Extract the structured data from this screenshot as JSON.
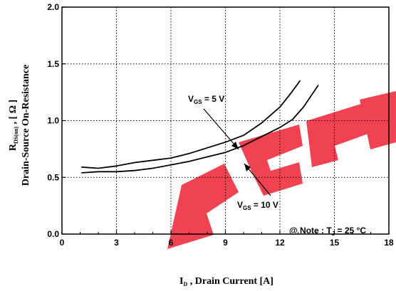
{
  "chart_data": {
    "type": "line",
    "title": "",
    "xlabel": {
      "main": "I",
      "sub": "D",
      "rest": " , Drain Current  [A]"
    },
    "ylabel": {
      "main": "R",
      "sub": "DS(on)",
      "rest": "  , [ Ω ]",
      "line2": "Drain-Source On-Resistance"
    },
    "xlim": [
      0,
      18
    ],
    "ylim": [
      0.0,
      2.0
    ],
    "xticks": [
      "0",
      "3",
      "6",
      "9",
      "12",
      "15",
      "18"
    ],
    "yticks": [
      "0.0",
      "0.5",
      "1.0",
      "1.5",
      "2.0"
    ],
    "grid": true,
    "series": [
      {
        "name": "VGS = 5 V",
        "color": "#000000",
        "x": [
          1.1,
          2.0,
          3.0,
          4.0,
          5.0,
          6.0,
          7.0,
          8.0,
          9.0,
          10.0,
          11.0,
          12.0,
          12.6,
          13.1
        ],
        "y": [
          0.59,
          0.58,
          0.6,
          0.63,
          0.65,
          0.67,
          0.71,
          0.76,
          0.81,
          0.87,
          0.98,
          1.12,
          1.24,
          1.35
        ]
      },
      {
        "name": "VGS = 10 V",
        "color": "#000000",
        "x": [
          1.1,
          2.0,
          3.0,
          4.0,
          5.0,
          6.0,
          7.0,
          8.0,
          9.0,
          10.0,
          11.0,
          12.0,
          12.7,
          13.3,
          14.1
        ],
        "y": [
          0.54,
          0.55,
          0.55,
          0.56,
          0.58,
          0.61,
          0.64,
          0.68,
          0.72,
          0.78,
          0.86,
          0.94,
          1.01,
          1.12,
          1.31
        ]
      }
    ],
    "annotations": {
      "vgs5": {
        "main": "V",
        "sub": "GS",
        "rest": " = 5 V"
      },
      "vgs10": {
        "main": "V",
        "sub": "GS",
        "rest": " = 10 V"
      },
      "note": {
        "lead": "@ Note : T",
        "sub": "J",
        "rest": " = 25 °C"
      }
    },
    "watermark": {
      "text": "EEPW",
      "color": "#e8001f"
    }
  }
}
